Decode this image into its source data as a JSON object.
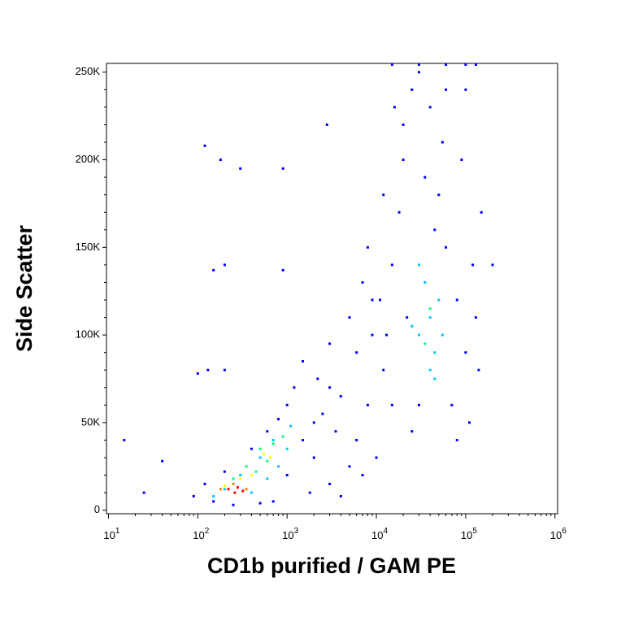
{
  "chart_data": {
    "type": "scatter",
    "xlabel": "CD1b purified / GAM PE",
    "ylabel": "Side Scatter",
    "xscale": "log",
    "xlim": [
      9.5,
      1070000
    ],
    "ylim": [
      -2000,
      255000
    ],
    "xticks": [
      {
        "value": 10,
        "label": "10",
        "exponent": "1"
      },
      {
        "value": 100,
        "label": "10",
        "exponent": "2"
      },
      {
        "value": 1000,
        "label": "10",
        "exponent": "3"
      },
      {
        "value": 10000,
        "label": "10",
        "exponent": "4"
      },
      {
        "value": 100000,
        "label": "10",
        "exponent": "5"
      },
      {
        "value": 1000000,
        "label": "10",
        "exponent": "6"
      }
    ],
    "xminorticks": [
      20,
      30,
      40,
      50,
      60,
      70,
      80,
      90,
      200,
      300,
      400,
      500,
      600,
      700,
      800,
      900,
      2000,
      3000,
      4000,
      5000,
      6000,
      7000,
      8000,
      9000,
      20000,
      30000,
      40000,
      50000,
      60000,
      70000,
      80000,
      90000,
      200000,
      300000,
      400000,
      500000,
      600000,
      700000,
      800000,
      900000
    ],
    "yticks": [
      0,
      {
        "value": 50000,
        "label": "50K"
      },
      {
        "value": 100000,
        "label": "100K"
      },
      {
        "value": 150000,
        "label": "150K"
      },
      {
        "value": 200000,
        "label": "200K"
      },
      {
        "value": 250000,
        "label": "250K"
      }
    ],
    "yminorticks": [
      10000,
      20000,
      30000,
      40000,
      60000,
      70000,
      80000,
      90000,
      110000,
      120000,
      130000,
      140000,
      160000,
      170000,
      180000,
      190000,
      210000,
      220000,
      230000,
      240000
    ],
    "series": [
      {
        "color": "#0000ff",
        "x": [
          90,
          120,
          150,
          200,
          250,
          400,
          600,
          800,
          1000,
          1500,
          2000,
          3000,
          4000,
          5000,
          1200,
          2500,
          3500,
          6000,
          8000,
          700,
          1800,
          2200,
          1500,
          3000,
          5000,
          7000,
          8000,
          12000,
          15000,
          20000,
          25000,
          30000,
          40000,
          50000,
          60000,
          70000,
          80000,
          100000,
          120000,
          150000,
          15000,
          18000,
          22000,
          30000,
          35000,
          45000,
          55000,
          90000,
          110000,
          130000,
          20000,
          60000,
          100000,
          11000,
          13000,
          25000,
          80000,
          12000,
          140000,
          16000,
          200000,
          15,
          120,
          180,
          300,
          900,
          2800,
          150,
          200,
          900,
          100,
          130,
          40,
          25,
          200,
          15000,
          30000,
          60000,
          100000,
          130000,
          4000,
          6000,
          9000,
          2000,
          3000,
          1000,
          500,
          7000,
          10000,
          9000
        ],
        "y": [
          8000,
          15000,
          5000,
          22000,
          3000,
          35000,
          45000,
          52000,
          60000,
          40000,
          30000,
          15000,
          8000,
          25000,
          70000,
          55000,
          45000,
          40000,
          60000,
          5000,
          10000,
          75000,
          85000,
          95000,
          110000,
          130000,
          150000,
          80000,
          140000,
          200000,
          240000,
          250000,
          230000,
          180000,
          150000,
          60000,
          120000,
          90000,
          140000,
          170000,
          60000,
          170000,
          110000,
          60000,
          190000,
          160000,
          210000,
          200000,
          50000,
          110000,
          220000,
          240000,
          240000,
          120000,
          100000,
          45000,
          40000,
          180000,
          80000,
          230000,
          140000,
          40000,
          208000,
          200000,
          195000,
          195000,
          220000,
          137000,
          140000,
          137000,
          78000,
          80000,
          28000,
          10000,
          80000,
          255000,
          255000,
          255000,
          255000,
          255000,
          65000,
          90000,
          100000,
          50000,
          70000,
          20000,
          4000,
          20000,
          30000,
          120000
        ]
      },
      {
        "color": "#00c8ff",
        "x": [
          30000,
          40000,
          45000,
          35000,
          50000,
          25000,
          40000,
          55000,
          30000,
          45000,
          300,
          500,
          700,
          200,
          1000,
          400,
          800,
          150,
          600,
          1100
        ],
        "y": [
          100000,
          110000,
          90000,
          130000,
          120000,
          105000,
          80000,
          100000,
          140000,
          75000,
          20000,
          30000,
          40000,
          12000,
          35000,
          10000,
          25000,
          8000,
          18000,
          48000
        ]
      },
      {
        "color": "#00ff80",
        "x": [
          350,
          500,
          700,
          600,
          250,
          900,
          450,
          40000,
          35000
        ],
        "y": [
          25000,
          35000,
          38000,
          28000,
          18000,
          42000,
          22000,
          115000,
          95000
        ]
      },
      {
        "color": "#ffff00",
        "x": [
          300,
          550,
          650,
          200,
          400
        ],
        "y": [
          18000,
          32000,
          30000,
          14000,
          20000
        ]
      },
      {
        "color": "#ff8000",
        "x": [
          250,
          350,
          180
        ],
        "y": [
          15000,
          12000,
          12000
        ]
      },
      {
        "color": "#ff0000",
        "x": [
          220,
          280,
          320,
          260
        ],
        "y": [
          12000,
          13000,
          11000,
          10000
        ]
      }
    ]
  }
}
